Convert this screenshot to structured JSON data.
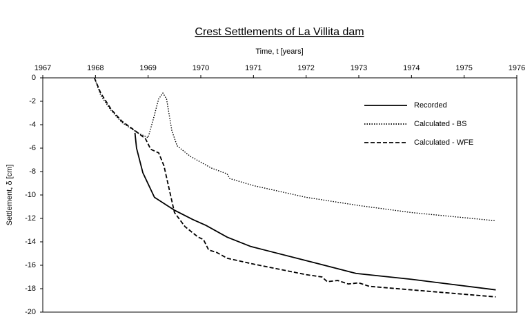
{
  "chart_data": {
    "type": "line",
    "title": "Crest Settlements of La Villita dam",
    "xlabel": "Time, t [years]",
    "ylabel": "Settlement, δ [cm]",
    "xaxis_position": "top",
    "xlim": [
      1967,
      1976
    ],
    "xticks": [
      1967,
      1968,
      1969,
      1970,
      1971,
      1972,
      1973,
      1974,
      1975,
      1976
    ],
    "ylim": [
      -20,
      0
    ],
    "yticks": [
      0,
      -2,
      -4,
      -6,
      -8,
      -10,
      -12,
      -14,
      -16,
      -18,
      -20
    ],
    "legend": "upper right",
    "series": [
      {
        "name": "Recorded",
        "color": "#000000",
        "linestyle": "solid",
        "x": [
          1968.75,
          1968.78,
          1968.9,
          1969.12,
          1969.5,
          1969.85,
          1970.1,
          1970.5,
          1970.95,
          1972,
          1972.95,
          1974,
          1975.6
        ],
        "values": [
          -4.7,
          -6.0,
          -8.1,
          -10.2,
          -11.3,
          -12.1,
          -12.6,
          -13.6,
          -14.4,
          -15.6,
          -16.7,
          -17.2,
          -18.1
        ]
      },
      {
        "name": "Calculated - BS",
        "color": "#000000",
        "linestyle": "dotted",
        "x": [
          1967.98,
          1968.1,
          1968.3,
          1968.5,
          1968.8,
          1969.0,
          1969.1,
          1969.2,
          1969.28,
          1969.35,
          1969.45,
          1969.55,
          1969.8,
          1970.2,
          1970.5,
          1970.55,
          1971,
          1972,
          1973,
          1974,
          1975.6
        ],
        "values": [
          0,
          -1.5,
          -2.8,
          -3.8,
          -4.7,
          -5.1,
          -3.5,
          -1.8,
          -1.3,
          -1.8,
          -4.5,
          -5.8,
          -6.7,
          -7.7,
          -8.2,
          -8.6,
          -9.2,
          -10.2,
          -10.9,
          -11.5,
          -12.2
        ]
      },
      {
        "name": "Calculated - WFE",
        "color": "#000000",
        "linestyle": "dashed",
        "x": [
          1967.98,
          1968.1,
          1968.3,
          1968.5,
          1968.75,
          1968.95,
          1969.05,
          1969.2,
          1969.3,
          1969.4,
          1969.5,
          1969.7,
          1969.95,
          1970.05,
          1970.15,
          1970.3,
          1970.5,
          1971,
          1972,
          1972.3,
          1972.4,
          1972.6,
          1972.8,
          1973,
          1973.2,
          1974,
          1975.6
        ],
        "values": [
          0,
          -1.3,
          -2.7,
          -3.7,
          -4.5,
          -5.2,
          -6.1,
          -6.4,
          -7.5,
          -9.5,
          -11.5,
          -12.7,
          -13.6,
          -13.8,
          -14.7,
          -14.9,
          -15.4,
          -15.9,
          -16.8,
          -17.0,
          -17.4,
          -17.3,
          -17.6,
          -17.5,
          -17.8,
          -18.1,
          -18.7
        ]
      }
    ]
  }
}
